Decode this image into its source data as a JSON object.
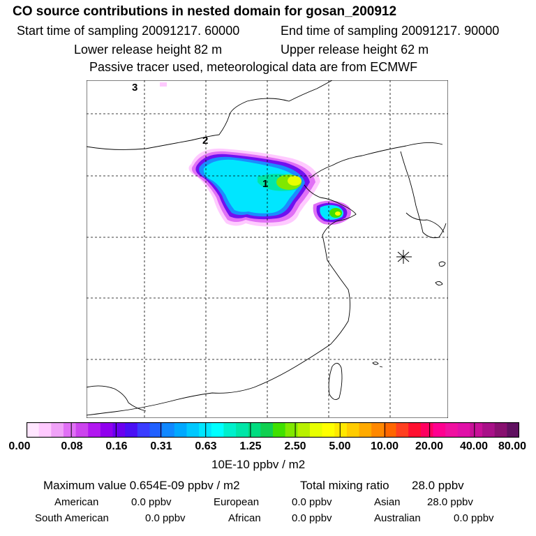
{
  "header": {
    "title": "CO  source contributions in nested domain for gosan_200912",
    "start_time": "Start time of sampling 20091217. 60000",
    "end_time": "End time of sampling 20091217. 90000",
    "lower_release": "Lower release height   82 m",
    "upper_release": "Upper release height   62 m",
    "tracer_note": "Passive tracer used, meteorological data are from ECMWF"
  },
  "map": {
    "labels": [
      "1",
      "2",
      "3"
    ]
  },
  "colorbar": {
    "colors": [
      "#ffe6ff",
      "#ffcaff",
      "#f0a2f8",
      "#e070f5",
      "#cc44ee",
      "#b218f0",
      "#9000ee",
      "#6a00f0",
      "#4a10f5",
      "#3a3cff",
      "#2060ff",
      "#1088ff",
      "#00a8ff",
      "#00c8ff",
      "#00e6ff",
      "#00ffff",
      "#00f0cc",
      "#00e6a8",
      "#00dc80",
      "#10d050",
      "#40e000",
      "#80e800",
      "#b8f000",
      "#e8ff00",
      "#ffff00",
      "#ffe800",
      "#ffcc00",
      "#ffaa00",
      "#ff8800",
      "#ff6600",
      "#ff4020",
      "#ff1030",
      "#ff0060",
      "#ff0090",
      "#f010a0",
      "#e010a8",
      "#c81098",
      "#a81088",
      "#881070",
      "#601060"
    ],
    "tick_labels": [
      "0.00",
      "0.08",
      "0.16",
      "0.31",
      "0.63",
      "1.25",
      "2.50",
      "5.00",
      "10.00",
      "20.00",
      "40.00",
      "80.00"
    ],
    "unit": "10E-10 ppbv / m2"
  },
  "summary": {
    "maximum": "Maximum value  0.654E-09 ppbv / m2",
    "total_label": "Total mixing ratio",
    "total_value": "28.0 ppbv",
    "regions": [
      {
        "name": "American",
        "value": "0.0 ppbv"
      },
      {
        "name": "European",
        "value": "0.0 ppbv"
      },
      {
        "name": "Asian",
        "value": "28.0 ppbv"
      },
      {
        "name": "South American",
        "value": "0.0 ppbv"
      },
      {
        "name": "African",
        "value": "0.0 ppbv"
      },
      {
        "name": "Australian",
        "value": "0.0 ppbv"
      }
    ]
  }
}
